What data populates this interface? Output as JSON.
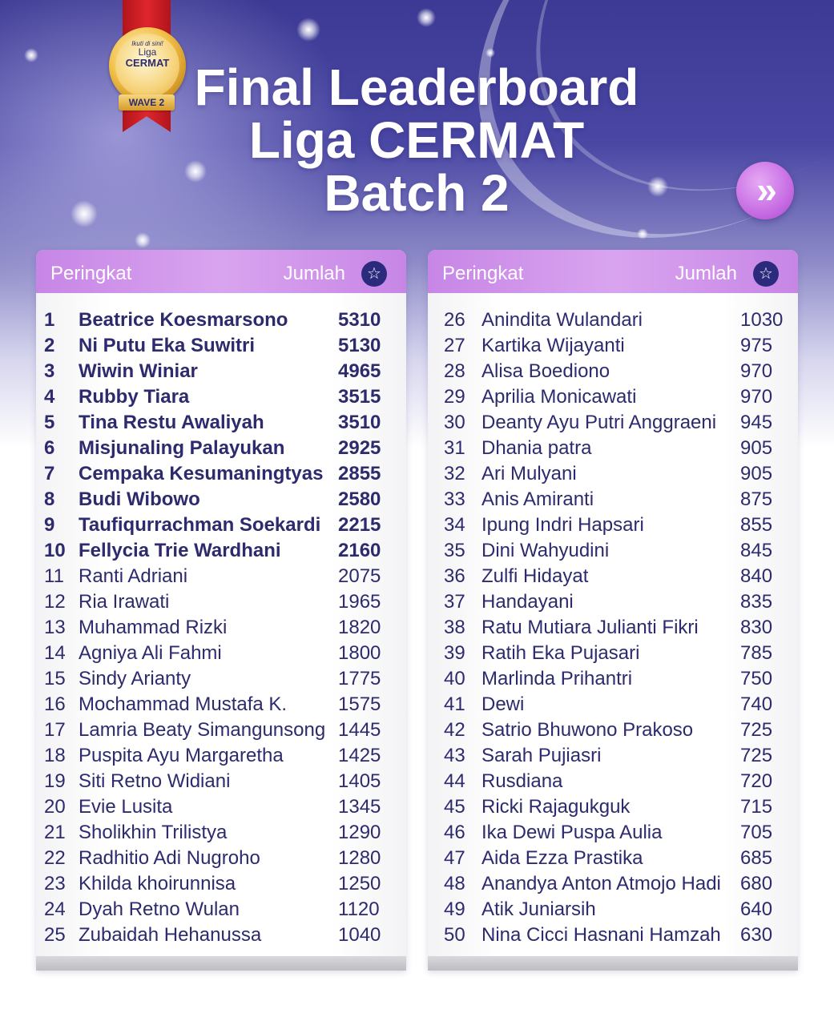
{
  "badge": {
    "small_text": "Ikuti di sini!",
    "line1": "Liga",
    "line2": "CERMAT",
    "wave": "WAVE 2"
  },
  "title": {
    "line1": "Final Leaderboard",
    "line2": "Liga CERMAT",
    "line3": "Batch 2"
  },
  "next_button": {
    "label": "»"
  },
  "header": {
    "rank_label": "Peringkat",
    "score_label": "Jumlah",
    "star_icon": "☆"
  },
  "left_rows": [
    {
      "rank": "1",
      "name": "Beatrice Koesmarsono",
      "score": "5310"
    },
    {
      "rank": "2",
      "name": "Ni Putu Eka Suwitri",
      "score": "5130"
    },
    {
      "rank": "3",
      "name": "Wiwin Winiar",
      "score": "4965"
    },
    {
      "rank": "4",
      "name": "Rubby Tiara",
      "score": "3515"
    },
    {
      "rank": "5",
      "name": "Tina Restu Awaliyah",
      "score": "3510"
    },
    {
      "rank": "6",
      "name": "Misjunaling Palayukan",
      "score": "2925"
    },
    {
      "rank": "7",
      "name": "Cempaka Kesumaningtyas",
      "score": "2855"
    },
    {
      "rank": "8",
      "name": "Budi Wibowo",
      "score": "2580"
    },
    {
      "rank": "9",
      "name": "Taufiqurrachman Soekardi",
      "score": "2215"
    },
    {
      "rank": "10",
      "name": "Fellycia Trie Wardhani",
      "score": "2160"
    },
    {
      "rank": "11",
      "name": "Ranti Adriani",
      "score": "2075"
    },
    {
      "rank": "12",
      "name": "Ria Irawati",
      "score": "1965"
    },
    {
      "rank": "13",
      "name": "Muhammad Rizki",
      "score": "1820"
    },
    {
      "rank": "14",
      "name": "Agniya Ali Fahmi",
      "score": "1800"
    },
    {
      "rank": "15",
      "name": "Sindy Arianty",
      "score": "1775"
    },
    {
      "rank": "16",
      "name": "Mochammad Mustafa K.",
      "score": "1575"
    },
    {
      "rank": "17",
      "name": "Lamria Beaty Simangunsong",
      "score": "1445"
    },
    {
      "rank": "18",
      "name": "Puspita Ayu Margaretha",
      "score": "1425"
    },
    {
      "rank": "19",
      "name": "Siti Retno Widiani",
      "score": "1405"
    },
    {
      "rank": "20",
      "name": "Evie Lusita",
      "score": "1345"
    },
    {
      "rank": "21",
      "name": "Sholikhin Trilistya",
      "score": "1290"
    },
    {
      "rank": "22",
      "name": "Radhitio Adi Nugroho",
      "score": "1280"
    },
    {
      "rank": "23",
      "name": "Khilda khoirunnisa",
      "score": "1250"
    },
    {
      "rank": "24",
      "name": "Dyah Retno Wulan",
      "score": "1120"
    },
    {
      "rank": "25",
      "name": "Zubaidah Hehanussa",
      "score": "1040"
    }
  ],
  "right_rows": [
    {
      "rank": "26",
      "name": "Anindita Wulandari",
      "score": "1030"
    },
    {
      "rank": "27",
      "name": "Kartika Wijayanti",
      "score": "975"
    },
    {
      "rank": "28",
      "name": "Alisa Boediono",
      "score": "970"
    },
    {
      "rank": "29",
      "name": "Aprilia Monicawati",
      "score": "970"
    },
    {
      "rank": "30",
      "name": "Deanty Ayu Putri Anggraeni",
      "score": "945"
    },
    {
      "rank": "31",
      "name": "Dhania patra",
      "score": "905"
    },
    {
      "rank": "32",
      "name": "Ari Mulyani",
      "score": "905"
    },
    {
      "rank": "33",
      "name": "Anis Amiranti",
      "score": "875"
    },
    {
      "rank": "34",
      "name": "Ipung Indri Hapsari",
      "score": "855"
    },
    {
      "rank": "35",
      "name": "Dini Wahyudini",
      "score": "845"
    },
    {
      "rank": "36",
      "name": "Zulfi Hidayat",
      "score": "840"
    },
    {
      "rank": "37",
      "name": "Handayani",
      "score": "835"
    },
    {
      "rank": "38",
      "name": "Ratu Mutiara Julianti Fikri",
      "score": "830"
    },
    {
      "rank": "39",
      "name": "Ratih Eka Pujasari",
      "score": "785"
    },
    {
      "rank": "40",
      "name": "Marlinda Prihantri",
      "score": "750"
    },
    {
      "rank": "41",
      "name": "Dewi",
      "score": "740"
    },
    {
      "rank": "42",
      "name": "Satrio Bhuwono Prakoso",
      "score": "725"
    },
    {
      "rank": "43",
      "name": "Sarah Pujiasri",
      "score": "725"
    },
    {
      "rank": "44",
      "name": "Rusdiana",
      "score": "720"
    },
    {
      "rank": "45",
      "name": "Ricki Rajagukguk",
      "score": "715"
    },
    {
      "rank": "46",
      "name": "Ika Dewi Puspa Aulia",
      "score": "705"
    },
    {
      "rank": "47",
      "name": "Aida Ezza Prastika",
      "score": "685"
    },
    {
      "rank": "48",
      "name": "Anandya Anton Atmojo Hadi",
      "score": "680"
    },
    {
      "rank": "49",
      "name": "Atik Juniarsih",
      "score": "640"
    },
    {
      "rank": "50",
      "name": "Nina Cicci Hasnani Hamzah",
      "score": "630"
    }
  ]
}
